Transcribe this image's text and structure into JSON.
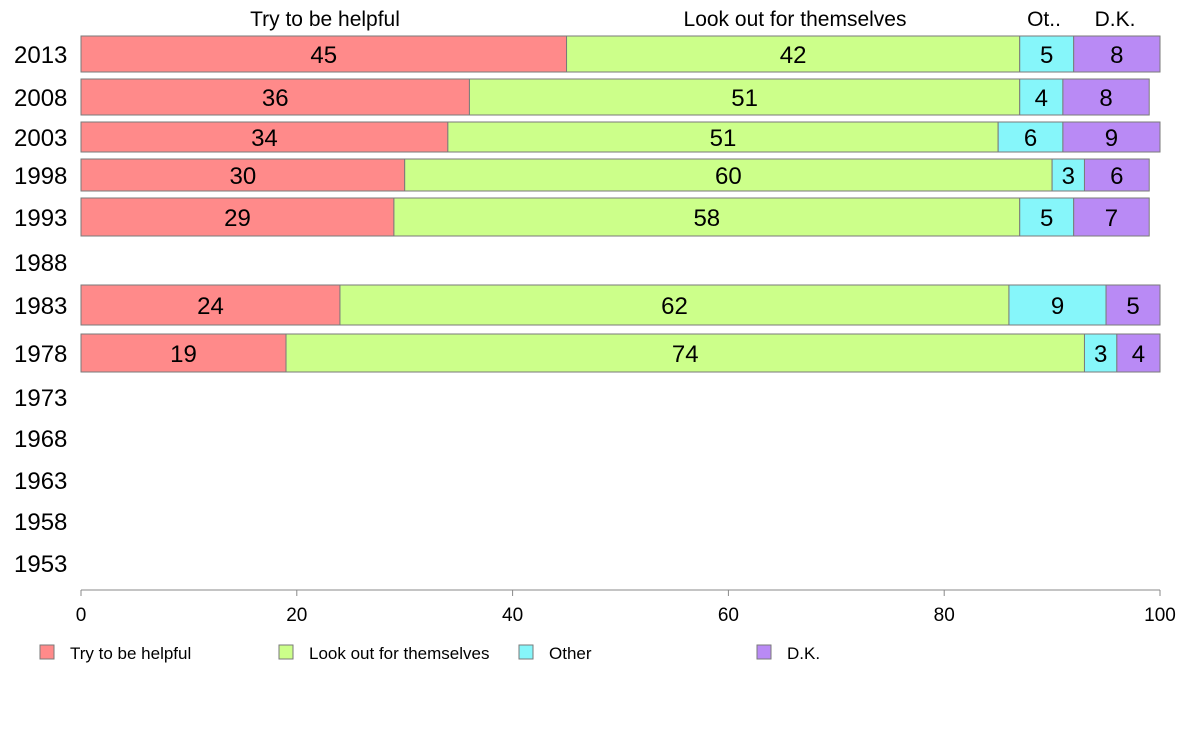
{
  "chart_data": {
    "type": "bar",
    "orientation": "horizontal",
    "stacked": true,
    "categories": [
      "2013",
      "2008",
      "2003",
      "1998",
      "1993",
      "1988",
      "1983",
      "1978",
      "1973",
      "1968",
      "1963",
      "1958",
      "1953"
    ],
    "series": [
      {
        "name": "Try to be helpful",
        "color": "#ff8a8a",
        "values": [
          45,
          36,
          34,
          30,
          29,
          null,
          24,
          19,
          null,
          null,
          null,
          null,
          null
        ]
      },
      {
        "name": "Look out for themselves",
        "color": "#ccff8a",
        "values": [
          42,
          51,
          51,
          60,
          58,
          null,
          62,
          74,
          null,
          null,
          null,
          null,
          null
        ]
      },
      {
        "name": "Other",
        "color": "#86f6fa",
        "values": [
          5,
          4,
          6,
          3,
          5,
          null,
          9,
          3,
          null,
          null,
          null,
          null,
          null
        ]
      },
      {
        "name": "D.K.",
        "color": "#b98af5",
        "values": [
          8,
          8,
          9,
          6,
          7,
          null,
          5,
          4,
          null,
          null,
          null,
          null,
          null
        ]
      }
    ],
    "column_headers": [
      "Try to be helpful",
      "Look out for themselves",
      "Ot..",
      "D.K."
    ],
    "xlim": [
      0,
      100
    ],
    "xticks": [
      "0",
      "20",
      "40",
      "60",
      "80",
      "100"
    ],
    "xlabel": "",
    "ylabel": "",
    "title": "",
    "grid": false,
    "legend_position": "bottom"
  }
}
